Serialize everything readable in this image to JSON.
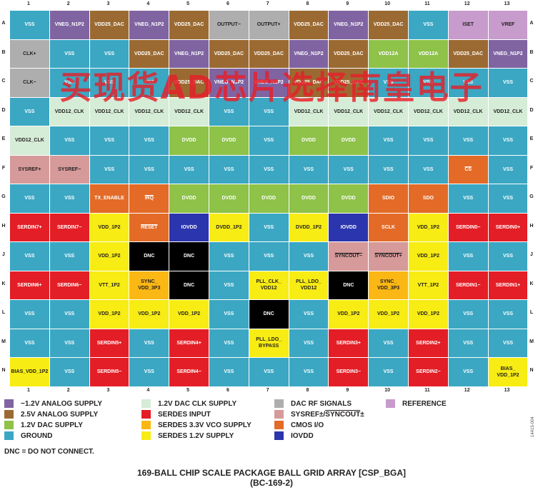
{
  "columns": [
    "1",
    "2",
    "3",
    "4",
    "5",
    "6",
    "7",
    "8",
    "9",
    "10",
    "11",
    "12",
    "13"
  ],
  "rows": [
    "A",
    "B",
    "C",
    "D",
    "E",
    "F",
    "G",
    "H",
    "J",
    "K",
    "L",
    "M",
    "N"
  ],
  "colors": {
    "neg12": "#8064a2",
    "a25": "#9b6a32",
    "dac12": "#8ec249",
    "ground": "#3ba7c3",
    "clk12": "#d5ecd6",
    "serdes_in": "#e41e26",
    "vco": "#fbb714",
    "serdes12": "#f7ec13",
    "rf": "#aeaeae",
    "sysref": "#d69a9a",
    "cmos": "#e36b27",
    "iovdd": "#2b35ad",
    "ref": "#c79bcc",
    "dnc": "#000000"
  },
  "balls": [
    [
      {
        "t": "VSS",
        "c": "ground"
      },
      {
        "t": "VNEG_N1P2",
        "c": "neg12"
      },
      {
        "t": "VDD25_DAC",
        "c": "a25"
      },
      {
        "t": "VNEG_N1P2",
        "c": "neg12"
      },
      {
        "t": "VDD25_DAC",
        "c": "a25"
      },
      {
        "t": "OUTPUT−",
        "c": "rf"
      },
      {
        "t": "OUTPUT+",
        "c": "rf"
      },
      {
        "t": "VDD25_DAC",
        "c": "a25"
      },
      {
        "t": "VNEG_N1P2",
        "c": "neg12"
      },
      {
        "t": "VDD25_DAC",
        "c": "a25"
      },
      {
        "t": "VSS",
        "c": "ground"
      },
      {
        "t": "ISET",
        "c": "ref"
      },
      {
        "t": "VREF",
        "c": "ref"
      }
    ],
    [
      {
        "t": "CLK+",
        "c": "rf"
      },
      {
        "t": "VSS",
        "c": "ground"
      },
      {
        "t": "VSS",
        "c": "ground"
      },
      {
        "t": "VDD25_DAC",
        "c": "a25"
      },
      {
        "t": "VNEG_N1P2",
        "c": "neg12"
      },
      {
        "t": "VDD25_DAC",
        "c": "a25"
      },
      {
        "t": "VDD25_DAC",
        "c": "a25"
      },
      {
        "t": "VNEG_N1P2",
        "c": "neg12"
      },
      {
        "t": "VDD25_DAC",
        "c": "a25"
      },
      {
        "t": "VDD12A",
        "c": "dac12"
      },
      {
        "t": "VDD12A",
        "c": "dac12"
      },
      {
        "t": "VDD25_DAC",
        "c": "a25"
      },
      {
        "t": "VNEG_N1P2",
        "c": "neg12"
      }
    ],
    [
      {
        "t": "CLK−",
        "c": "rf"
      },
      {
        "t": "VSS",
        "c": "ground"
      },
      {
        "t": "VSS",
        "c": "ground"
      },
      {
        "t": "VSS",
        "c": "ground"
      },
      {
        "t": "VDD25_DAC",
        "c": "a25"
      },
      {
        "t": "VNEG_N1P2",
        "c": "neg12"
      },
      {
        "t": "VNEG_N1P2",
        "c": "neg12"
      },
      {
        "t": "VDD25_DAC",
        "c": "a25"
      },
      {
        "t": "VDD25_DAC",
        "c": "a25"
      },
      {
        "t": "VSS",
        "c": "ground"
      },
      {
        "t": "VSS",
        "c": "ground"
      },
      {
        "t": "VSS",
        "c": "ground"
      },
      {
        "t": "VSS",
        "c": "ground"
      }
    ],
    [
      {
        "t": "VSS",
        "c": "ground"
      },
      {
        "t": "VDD12_CLK",
        "c": "clk12"
      },
      {
        "t": "VDD12_CLK",
        "c": "clk12"
      },
      {
        "t": "VDD12_CLK",
        "c": "clk12"
      },
      {
        "t": "VDD12_CLK",
        "c": "clk12"
      },
      {
        "t": "VSS",
        "c": "ground"
      },
      {
        "t": "VSS",
        "c": "ground"
      },
      {
        "t": "VDD12_CLK",
        "c": "clk12"
      },
      {
        "t": "VDD12_CLK",
        "c": "clk12"
      },
      {
        "t": "VDD12_CLK",
        "c": "clk12"
      },
      {
        "t": "VDD12_CLK",
        "c": "clk12"
      },
      {
        "t": "VDD12_CLK",
        "c": "clk12"
      },
      {
        "t": "VDD12_CLK",
        "c": "clk12"
      }
    ],
    [
      {
        "t": "VDD12_CLK",
        "c": "clk12"
      },
      {
        "t": "VSS",
        "c": "ground"
      },
      {
        "t": "VSS",
        "c": "ground"
      },
      {
        "t": "VSS",
        "c": "ground"
      },
      {
        "t": "DVDD",
        "c": "dac12"
      },
      {
        "t": "DVDD",
        "c": "dac12"
      },
      {
        "t": "VSS",
        "c": "ground"
      },
      {
        "t": "DVDD",
        "c": "dac12"
      },
      {
        "t": "DVDD",
        "c": "dac12"
      },
      {
        "t": "VSS",
        "c": "ground"
      },
      {
        "t": "VSS",
        "c": "ground"
      },
      {
        "t": "VSS",
        "c": "ground"
      },
      {
        "t": "VSS",
        "c": "ground"
      }
    ],
    [
      {
        "t": "SYSREF+",
        "c": "sysref"
      },
      {
        "t": "SYSREF−",
        "c": "sysref"
      },
      {
        "t": "VSS",
        "c": "ground"
      },
      {
        "t": "VSS",
        "c": "ground"
      },
      {
        "t": "VSS",
        "c": "ground"
      },
      {
        "t": "VSS",
        "c": "ground"
      },
      {
        "t": "VSS",
        "c": "ground"
      },
      {
        "t": "VSS",
        "c": "ground"
      },
      {
        "t": "VSS",
        "c": "ground"
      },
      {
        "t": "VSS",
        "c": "ground"
      },
      {
        "t": "VSS",
        "c": "ground"
      },
      {
        "t": "CS",
        "c": "cmos",
        "o": 1
      },
      {
        "t": "VSS",
        "c": "ground"
      }
    ],
    [
      {
        "t": "VSS",
        "c": "ground"
      },
      {
        "t": "VSS",
        "c": "ground"
      },
      {
        "t": "TX_ENABLE",
        "c": "cmos"
      },
      {
        "t": "IRQ",
        "c": "cmos",
        "o": 1
      },
      {
        "t": "DVDD",
        "c": "dac12"
      },
      {
        "t": "DVDD",
        "c": "dac12"
      },
      {
        "t": "DVDD",
        "c": "dac12"
      },
      {
        "t": "DVDD",
        "c": "dac12"
      },
      {
        "t": "DVDD",
        "c": "dac12"
      },
      {
        "t": "SDIO",
        "c": "cmos"
      },
      {
        "t": "SDO",
        "c": "cmos"
      },
      {
        "t": "VSS",
        "c": "ground"
      },
      {
        "t": "VSS",
        "c": "ground"
      }
    ],
    [
      {
        "t": "SERDIN7+",
        "c": "serdes_in"
      },
      {
        "t": "SERDIN7−",
        "c": "serdes_in"
      },
      {
        "t": "VDD_1P2",
        "c": "serdes12"
      },
      {
        "t": "RESET",
        "c": "cmos",
        "o": 1
      },
      {
        "t": "IOVDD",
        "c": "iovdd"
      },
      {
        "t": "DVDD_1P2",
        "c": "serdes12"
      },
      {
        "t": "VSS",
        "c": "ground"
      },
      {
        "t": "DVDD_1P2",
        "c": "serdes12"
      },
      {
        "t": "IOVDD",
        "c": "iovdd"
      },
      {
        "t": "SCLK",
        "c": "cmos"
      },
      {
        "t": "VDD_1P2",
        "c": "serdes12"
      },
      {
        "t": "SERDIN0−",
        "c": "serdes_in"
      },
      {
        "t": "SERDIN0+",
        "c": "serdes_in"
      }
    ],
    [
      {
        "t": "VSS",
        "c": "ground"
      },
      {
        "t": "VSS",
        "c": "ground"
      },
      {
        "t": "VDD_1P2",
        "c": "serdes12"
      },
      {
        "t": "DNC",
        "c": "dnc"
      },
      {
        "t": "DNC",
        "c": "dnc"
      },
      {
        "t": "VSS",
        "c": "ground"
      },
      {
        "t": "VSS",
        "c": "ground"
      },
      {
        "t": "VSS",
        "c": "ground"
      },
      {
        "t": "SYNCOUT−",
        "c": "sysref",
        "o": 1
      },
      {
        "t": "SYNCOUT+",
        "c": "sysref",
        "o": 1
      },
      {
        "t": "VDD_1P2",
        "c": "serdes12"
      },
      {
        "t": "VSS",
        "c": "ground"
      },
      {
        "t": "VSS",
        "c": "ground"
      }
    ],
    [
      {
        "t": "SERDIN6+",
        "c": "serdes_in"
      },
      {
        "t": "SERDIN6−",
        "c": "serdes_in"
      },
      {
        "t": "VTT_1P2",
        "c": "serdes12"
      },
      {
        "t": "SYNC_\nVDD_3P3",
        "c": "vco"
      },
      {
        "t": "DNC",
        "c": "dnc"
      },
      {
        "t": "VSS",
        "c": "ground"
      },
      {
        "t": "PLL_CLK_\nVDD12",
        "c": "serdes12"
      },
      {
        "t": "PLL_LDO_\nVDD12",
        "c": "serdes12"
      },
      {
        "t": "DNC",
        "c": "dnc"
      },
      {
        "t": "SYNC_\nVDD_3P3",
        "c": "vco"
      },
      {
        "t": "VTT_1P2",
        "c": "serdes12"
      },
      {
        "t": "SERDIN1−",
        "c": "serdes_in"
      },
      {
        "t": "SERDIN1+",
        "c": "serdes_in"
      }
    ],
    [
      {
        "t": "VSS",
        "c": "ground"
      },
      {
        "t": "VSS",
        "c": "ground"
      },
      {
        "t": "VDD_1P2",
        "c": "serdes12"
      },
      {
        "t": "VDD_1P2",
        "c": "serdes12"
      },
      {
        "t": "VDD_1P2",
        "c": "serdes12"
      },
      {
        "t": "VSS",
        "c": "ground"
      },
      {
        "t": "DNC",
        "c": "dnc"
      },
      {
        "t": "VSS",
        "c": "ground"
      },
      {
        "t": "VDD_1P2",
        "c": "serdes12"
      },
      {
        "t": "VDD_1P2",
        "c": "serdes12"
      },
      {
        "t": "VDD_1P2",
        "c": "serdes12"
      },
      {
        "t": "VSS",
        "c": "ground"
      },
      {
        "t": "VSS",
        "c": "ground"
      }
    ],
    [
      {
        "t": "VSS",
        "c": "ground"
      },
      {
        "t": "VSS",
        "c": "ground"
      },
      {
        "t": "SERDIN5+",
        "c": "serdes_in"
      },
      {
        "t": "VSS",
        "c": "ground"
      },
      {
        "t": "SERDIN4+",
        "c": "serdes_in"
      },
      {
        "t": "VSS",
        "c": "ground"
      },
      {
        "t": "PLL_LDO_\nBYPASS",
        "c": "serdes12"
      },
      {
        "t": "VSS",
        "c": "ground"
      },
      {
        "t": "SERDIN3+",
        "c": "serdes_in"
      },
      {
        "t": "VSS",
        "c": "ground"
      },
      {
        "t": "SERDIN2+",
        "c": "serdes_in"
      },
      {
        "t": "VSS",
        "c": "ground"
      },
      {
        "t": "VSS",
        "c": "ground"
      }
    ],
    [
      {
        "t": "BIAS_VDD_1P2",
        "c": "serdes12"
      },
      {
        "t": "VSS",
        "c": "ground"
      },
      {
        "t": "SERDIN5−",
        "c": "serdes_in"
      },
      {
        "t": "VSS",
        "c": "ground"
      },
      {
        "t": "SERDIN4−",
        "c": "serdes_in"
      },
      {
        "t": "VSS",
        "c": "ground"
      },
      {
        "t": "VSS",
        "c": "ground"
      },
      {
        "t": "VSS",
        "c": "ground"
      },
      {
        "t": "SERDIN3−",
        "c": "serdes_in"
      },
      {
        "t": "VSS",
        "c": "ground"
      },
      {
        "t": "SERDIN2−",
        "c": "serdes_in"
      },
      {
        "t": "VSS",
        "c": "ground"
      },
      {
        "t": "BIAS_\nVDD_1P2",
        "c": "serdes12"
      }
    ]
  ],
  "watermark": "买现货AD芯片选择南皇电子",
  "legend": [
    {
      "label": "−1.2V ANALOG SUPPLY",
      "c": "neg12"
    },
    {
      "label": "2.5V ANALOG SUPPLY",
      "c": "a25"
    },
    {
      "label": "1.2V DAC SUPPLY",
      "c": "dac12"
    },
    {
      "label": "GROUND",
      "c": "ground"
    },
    {
      "label": "1.2V DAC CLK SUPPLY",
      "c": "clk12"
    },
    {
      "label": "SERDES INPUT",
      "c": "serdes_in"
    },
    {
      "label": "SERDES 3.3V VCO SUPPLY",
      "c": "vco"
    },
    {
      "label": "SERDES 1.2V SUPPLY",
      "c": "serdes12"
    },
    {
      "label": "DAC RF SIGNALS",
      "c": "rf"
    },
    {
      "label": "SYSREF±/SYNCOUT±",
      "c": "sysref"
    },
    {
      "label": "CMOS I/O",
      "c": "cmos"
    },
    {
      "label": "IOVDD",
      "c": "iovdd"
    },
    {
      "label": "REFERENCE",
      "c": "ref"
    }
  ],
  "note": "DNC = DO NOT CONNECT.",
  "title_line1": "169-BALL CHIP SCALE PACKAGE BALL GRID ARRAY [CSP_BGA]",
  "title_line2": "(BC-169-2)",
  "figure_id": "14415-004"
}
